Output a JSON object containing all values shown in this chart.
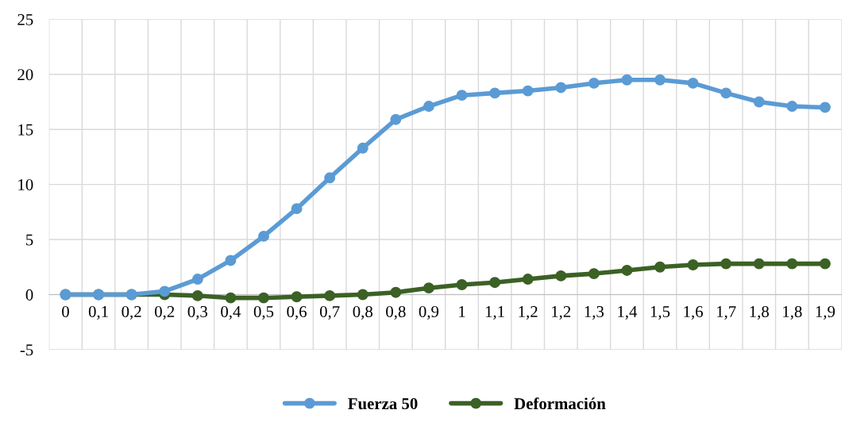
{
  "chart_data": {
    "type": "line",
    "categories": [
      "0",
      "0,1",
      "0,2",
      "0,2",
      "0,3",
      "0,4",
      "0,5",
      "0,6",
      "0,7",
      "0,8",
      "0,8",
      "0,9",
      "1",
      "1,1",
      "1,2",
      "1,2",
      "1,3",
      "1,4",
      "1,5",
      "1,6",
      "1,7",
      "1,8",
      "1,8",
      "1,9"
    ],
    "series": [
      {
        "name": "Fuerza 50",
        "color": "#5b9bd5",
        "values": [
          0,
          0,
          0,
          0.3,
          1.4,
          3.1,
          5.3,
          7.8,
          10.6,
          13.3,
          15.9,
          17.1,
          18.1,
          18.3,
          18.5,
          18.8,
          19.2,
          19.5,
          19.5,
          19.2,
          18.3,
          17.5,
          17.1,
          17.0
        ]
      },
      {
        "name": "Deformación",
        "color": "#3b6125",
        "values": [
          0,
          0,
          0,
          0,
          -0.1,
          -0.3,
          -0.3,
          -0.2,
          -0.1,
          0,
          0.2,
          0.6,
          0.9,
          1.1,
          1.4,
          1.7,
          1.9,
          2.2,
          2.5,
          2.7,
          2.8,
          2.8,
          2.8,
          2.8
        ]
      }
    ],
    "ylim": [
      -5,
      25
    ],
    "yticks": [
      -5,
      0,
      5,
      10,
      15,
      20,
      25
    ],
    "grid": true,
    "legend": "bottom",
    "marker": "circle",
    "line_style": "solid"
  }
}
